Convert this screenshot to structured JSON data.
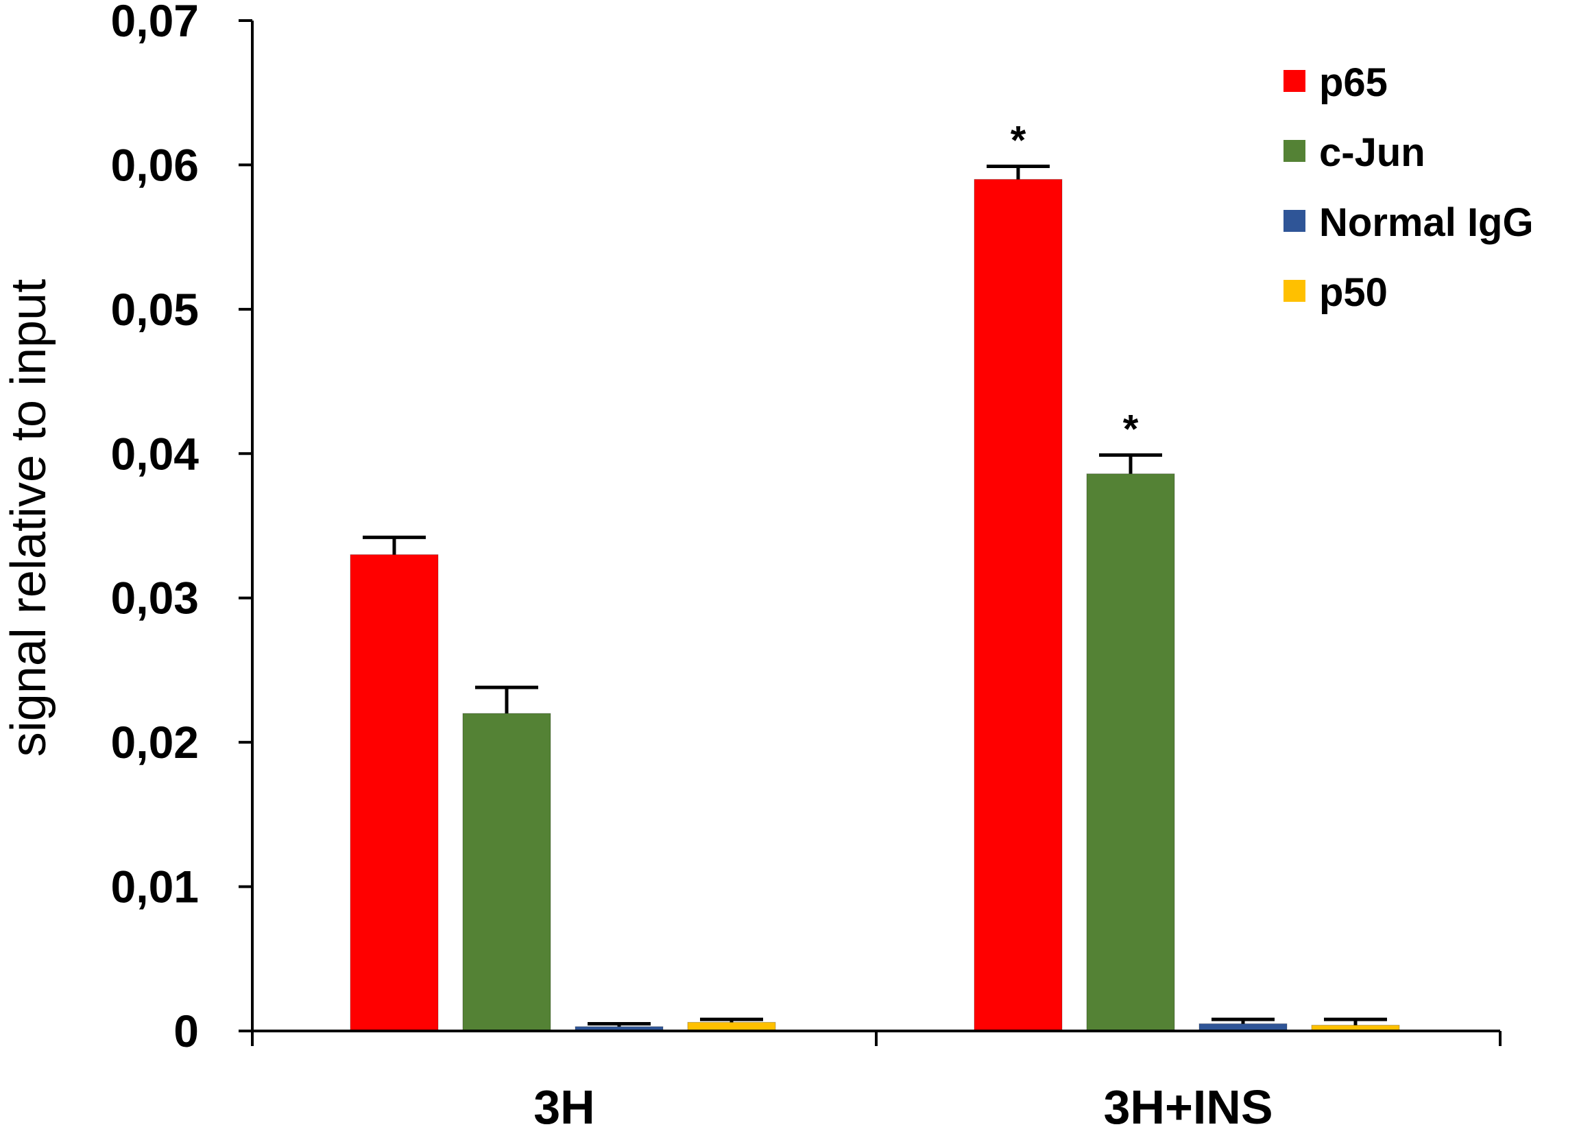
{
  "chart_data": {
    "type": "bar",
    "ylabel": "signal relative to input",
    "ylim": [
      0,
      0.07
    ],
    "yticks": [
      "0",
      "0,01",
      "0,02",
      "0,03",
      "0,04",
      "0,05",
      "0,06",
      "0,07"
    ],
    "categories": [
      "3H",
      "3H+INS"
    ],
    "series": [
      {
        "name": "p65",
        "color": "#ff0000",
        "values": [
          0.033,
          0.059
        ],
        "errors": [
          0.0012,
          0.0009
        ],
        "annotations": [
          "",
          "*"
        ]
      },
      {
        "name": "c-Jun",
        "color": "#548235",
        "values": [
          0.022,
          0.0386
        ],
        "errors": [
          0.0018,
          0.0013
        ],
        "annotations": [
          "",
          "*"
        ]
      },
      {
        "name": "Normal IgG",
        "color": "#2f5597",
        "values": [
          0.0003,
          0.0005
        ],
        "errors": [
          0.0002,
          0.0003
        ],
        "annotations": [
          "",
          ""
        ]
      },
      {
        "name": "p50",
        "color": "#ffc000",
        "values": [
          0.0006,
          0.0004
        ],
        "errors": [
          0.0002,
          0.0004
        ],
        "annotations": [
          "",
          ""
        ]
      }
    ],
    "legend_position": "top-right",
    "grid": false
  }
}
